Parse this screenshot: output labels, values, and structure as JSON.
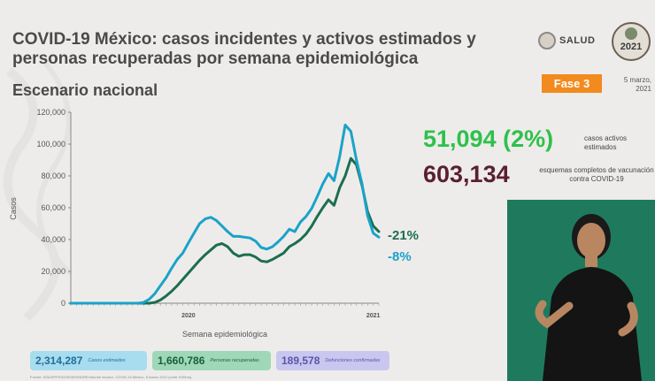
{
  "header": {
    "title": "COVID-19 México: casos incidentes y activos estimados y personas recuperadas por semana epidemiológica",
    "subtitle": "Escenario nacional",
    "salud_label": "SALUD",
    "phase_badge": "Fase 3",
    "date": "5 marzo, 2021",
    "logo_year": "2021"
  },
  "colors": {
    "incident": "#1aa3c8",
    "recovered": "#1b6e4f",
    "active_green": "#2ec14b",
    "vaccine_maroon": "#5a1f33",
    "phase_orange": "#f28a1e"
  },
  "stats": {
    "active_value": "51,094 (2%)",
    "active_label": "casos activos estimados",
    "vaccination_value": "603,134",
    "vaccination_label": "esquemas completos de vacunación contra COVID-19"
  },
  "summary": [
    {
      "value": "2,314,287",
      "label": "Casos estimados"
    },
    {
      "value": "1,660,786",
      "label": "Personas recuperadas"
    },
    {
      "value": "189,578",
      "label": "Defunciones confirmadas"
    }
  ],
  "source_note": "Fuente: SSA/SPPS/DGE/DIE/INDRE/Informe técnico. COVID-19 México. 5 marzo 2021 (corte 9:00hrs).",
  "chart_data": {
    "type": "line",
    "xlabel": "Semana epidemiológica",
    "ylabel": "Casos",
    "ylim": [
      0,
      120000
    ],
    "yticks": [
      0,
      20000,
      40000,
      60000,
      80000,
      100000,
      120000
    ],
    "ytick_labels": [
      "0",
      "20,000",
      "40,000",
      "60,000",
      "80,000",
      "100,000",
      "120,000"
    ],
    "xticks": [
      {
        "week": 21,
        "label": "2020"
      },
      {
        "week": 54,
        "label": "2021"
      }
    ],
    "grid": false,
    "annotations": [
      "-21%",
      "-8%"
    ],
    "series": [
      {
        "key": "incident",
        "values": [
          0,
          0,
          0,
          0,
          0,
          0,
          0,
          0,
          0,
          0,
          0,
          0,
          0,
          500,
          2500,
          6000,
          11000,
          16000,
          22000,
          27500,
          31500,
          38000,
          44000,
          50000,
          53000,
          54000,
          52000,
          48500,
          45000,
          42000,
          42000,
          41500,
          41000,
          39000,
          35000,
          34000,
          35500,
          38500,
          42000,
          46500,
          45000,
          51000,
          54500,
          59500,
          67000,
          75000,
          81500,
          77000,
          92000,
          112000,
          108000,
          90000,
          75000,
          55000,
          44000,
          41500
        ]
      },
      {
        "key": "recovered",
        "values": [
          0,
          0,
          0,
          0,
          0,
          0,
          0,
          0,
          0,
          0,
          0,
          0,
          0,
          0,
          0,
          500,
          2000,
          4500,
          7500,
          11000,
          15000,
          19000,
          23000,
          27000,
          30500,
          33500,
          36500,
          37500,
          35500,
          31500,
          29500,
          30500,
          30500,
          29000,
          26500,
          26000,
          27500,
          29500,
          31500,
          35500,
          37500,
          40000,
          43500,
          48500,
          54500,
          60000,
          65000,
          61500,
          72500,
          80000,
          91000,
          87000,
          74000,
          57500,
          48500,
          45000
        ]
      }
    ]
  }
}
